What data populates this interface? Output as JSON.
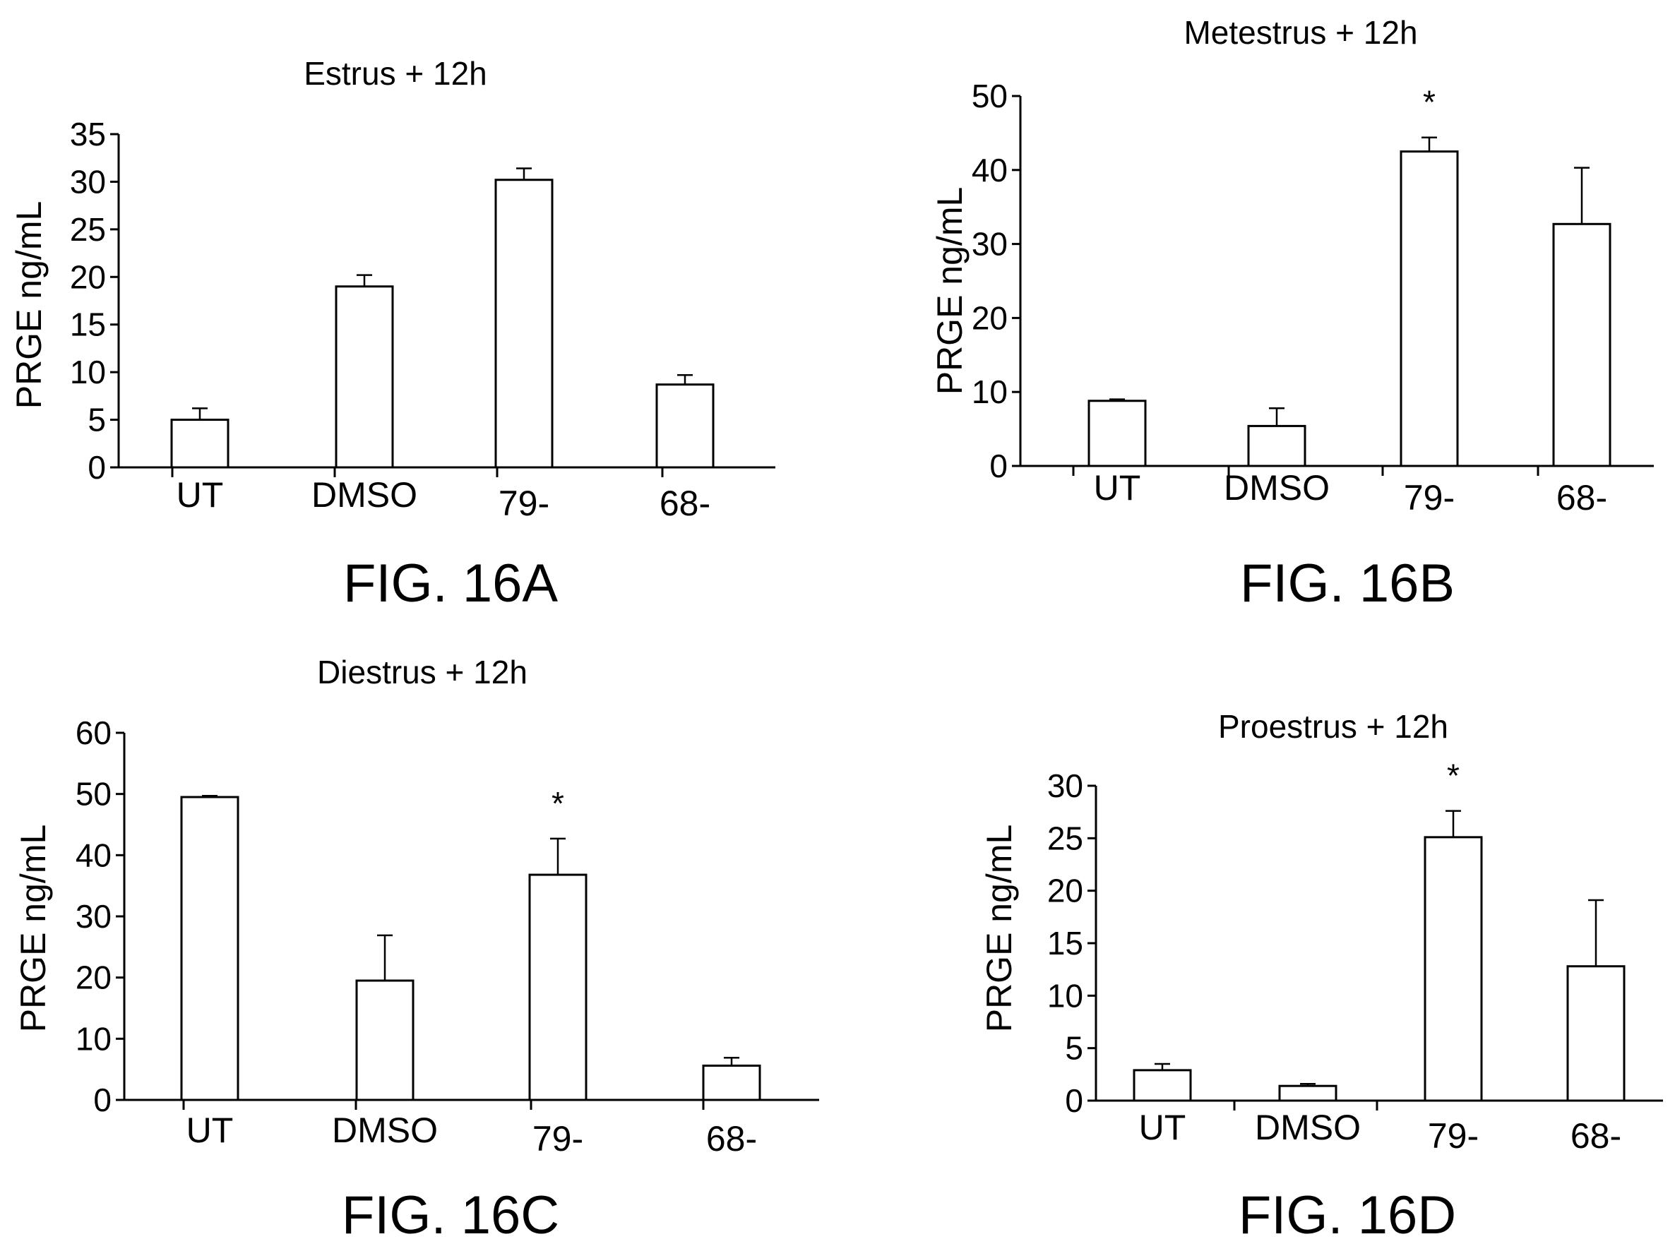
{
  "figures": [
    {
      "caption": "FIG. 16A"
    },
    {
      "caption": "FIG. 16B"
    },
    {
      "caption": "FIG. 16C"
    },
    {
      "caption": "FIG. 16D"
    }
  ],
  "chart_data": [
    {
      "type": "bar",
      "title": "Estrus + 12h",
      "xlabel": "",
      "ylabel": "PRGE ng/mL",
      "ylim": [
        0,
        35
      ],
      "yticks": [
        0,
        5,
        10,
        15,
        20,
        25,
        30,
        35
      ],
      "categories": [
        "UT",
        "DMSO",
        "79-",
        "68-"
      ],
      "values": [
        5,
        19,
        30.2,
        8.7
      ],
      "errors": [
        1.2,
        1.2,
        1.2,
        1.0
      ],
      "significance": [
        "",
        "",
        "",
        ""
      ],
      "grid": false,
      "legend": "none",
      "bar_color": "#ffffff",
      "stroke_color": "#000000"
    },
    {
      "type": "bar",
      "title": "Metestrus + 12h",
      "xlabel": "",
      "ylabel": "PRGE ng/mL",
      "ylim": [
        0,
        50
      ],
      "yticks": [
        0,
        10,
        20,
        30,
        40,
        50
      ],
      "categories": [
        "UT",
        "DMSO",
        "79-",
        "68-"
      ],
      "values": [
        8.8,
        5.4,
        42.5,
        32.7
      ],
      "errors": [
        0.2,
        2.4,
        1.9,
        7.6
      ],
      "significance": [
        "",
        "",
        "*",
        ""
      ],
      "grid": false,
      "legend": "none",
      "bar_color": "#ffffff",
      "stroke_color": "#000000"
    },
    {
      "type": "bar",
      "title": "Diestrus + 12h",
      "xlabel": "",
      "ylabel": "PRGE ng/mL",
      "ylim": [
        0,
        60
      ],
      "yticks": [
        0,
        10,
        20,
        30,
        40,
        50,
        60
      ],
      "categories": [
        "UT",
        "DMSO",
        "79-",
        "68-"
      ],
      "values": [
        49.5,
        19.5,
        36.8,
        5.6
      ],
      "errors": [
        0.2,
        7.4,
        5.9,
        1.3
      ],
      "significance": [
        "",
        "",
        "*",
        ""
      ],
      "grid": false,
      "legend": "none",
      "bar_color": "#ffffff",
      "stroke_color": "#000000"
    },
    {
      "type": "bar",
      "title": "Proestrus + 12h",
      "xlabel": "",
      "ylabel": "PRGE ng/mL",
      "ylim": [
        0,
        30
      ],
      "yticks": [
        0,
        5,
        10,
        15,
        20,
        25,
        30
      ],
      "categories": [
        "UT",
        "DMSO",
        "79-",
        "68-"
      ],
      "values": [
        2.9,
        1.4,
        25.1,
        12.8
      ],
      "errors": [
        0.6,
        0.2,
        2.5,
        6.3
      ],
      "significance": [
        "",
        "",
        "*",
        ""
      ],
      "grid": false,
      "legend": "none",
      "bar_color": "#ffffff",
      "stroke_color": "#000000"
    }
  ]
}
